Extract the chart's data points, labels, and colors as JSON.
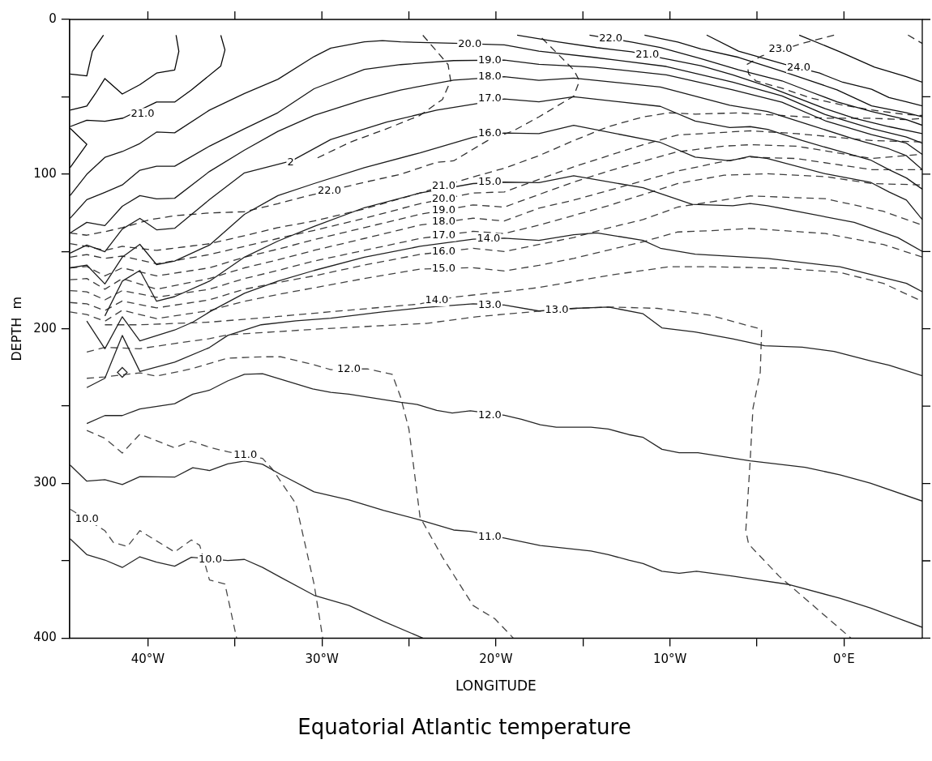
{
  "chart_data": {
    "type": "line",
    "title": "Equatorial Atlantic temperature",
    "xlabel": "LONGITUDE",
    "ylabel": "DEPTH  m",
    "xlim": [
      -44.5,
      4.5
    ],
    "ylim": [
      400,
      0
    ],
    "xticks": [
      {
        "value": -40,
        "label": "40°W"
      },
      {
        "value": -35,
        "label": null
      },
      {
        "value": -30,
        "label": "30°W"
      },
      {
        "value": -25,
        "label": null
      },
      {
        "value": -20,
        "label": "20°W"
      },
      {
        "value": -15,
        "label": null
      },
      {
        "value": -10,
        "label": "10°W"
      },
      {
        "value": -5,
        "label": null
      },
      {
        "value": 0,
        "label": "0°E"
      }
    ],
    "yticks": [
      0,
      {
        "value": 50,
        "label": null
      },
      100,
      {
        "value": 150,
        "label": null
      },
      200,
      {
        "value": 250,
        "label": null
      },
      300,
      {
        "value": 350,
        "label": null
      },
      400
    ],
    "grid": false,
    "series": [
      {
        "color": "#020202",
        "line_style": "solid",
        "x": [
          -44.47,
          -43.51,
          -43.19,
          -42.55
        ],
        "values": [
          35.3,
          36.5,
          20.6,
          10.2
        ]
      },
      {
        "color": "#040404",
        "line_style": "solid",
        "x": [
          -44.47,
          -43.51,
          -43.03,
          -42.47,
          -41.47,
          -40.46,
          -39.5,
          -38.46,
          -38.22,
          -38.38
        ],
        "values": [
          58.6,
          56.0,
          48.2,
          38.2,
          48.2,
          42.2,
          34.7,
          32.7,
          20.6,
          10.2
        ]
      },
      {
        "color": "#060606",
        "line_style": "solid",
        "x": [
          -44.47,
          -43.51,
          -42.47,
          -41.43,
          -39.5,
          -38.46,
          -37.5,
          -35.81,
          -35.57,
          -35.81
        ],
        "values": [
          69.3,
          65.2,
          65.8,
          63.8,
          53.4,
          53.4,
          45.6,
          30.1,
          19.7,
          10.2
        ]
      },
      {
        "color": "#080808",
        "line_style": "solid",
        "x": [
          -44.47,
          -43.51,
          -44.47
        ],
        "values": [
          70.3,
          80.7,
          95.8
        ]
      },
      {
        "color": "#0a0a0a",
        "line_style": "solid",
        "x": [
          -2.57,
          -0.24,
          1.76,
          3.59,
          4.5
        ],
        "values": [
          10.1,
          20.9,
          30.8,
          37.0,
          40.6
        ]
      },
      {
        "color": "#0c0c0c",
        "line_style": "solid",
        "x": [
          -7.89,
          -6.06,
          -3.4,
          -1.4,
          -0.07,
          1.59,
          2.59,
          3.59,
          4.5
        ],
        "values": [
          10.1,
          20.5,
          29.0,
          34.7,
          40.6,
          45.1,
          50.5,
          53.2,
          55.9
        ]
      },
      {
        "color": "#0e0e0e",
        "line_style": "solid",
        "x": [
          -11.46,
          -9.55,
          -8.22,
          -6.06,
          -3.56,
          -1.9,
          -0.4,
          1.59,
          3.59,
          4.5
        ],
        "values": [
          10.1,
          14.6,
          19.1,
          24.5,
          33.5,
          39.7,
          45.5,
          55.9,
          60.3,
          63.0
        ]
      },
      {
        "color": "#101010",
        "line_style": "solid",
        "x": [
          -14.62,
          -12.21,
          -10.55,
          -8.22,
          -6.06,
          -3.56,
          -1.9,
          -0.4,
          1.59,
          3.59,
          4.5
        ],
        "values": [
          10.1,
          14.6,
          18.2,
          25.4,
          32.6,
          39.7,
          46.9,
          53.2,
          59.5,
          64.8,
          68.4
        ]
      },
      {
        "color": "#121212",
        "line_style": "solid",
        "x": [
          -18.78,
          -16.53,
          -14.2,
          -12.21,
          -10.46,
          -8.22,
          -6.39,
          -4.39,
          -2.73,
          -1.07,
          0.59,
          2.59,
          4.5
        ],
        "values": [
          10.1,
          14.3,
          18.2,
          20.9,
          25.0,
          29.9,
          35.8,
          43.3,
          50.5,
          57.7,
          63.9,
          69.3,
          73.8
        ]
      },
      {
        "color": "#141414",
        "line_style": "solid",
        "x": [
          -44.47,
          -43.51,
          -42.47,
          -41.47,
          -40.46,
          -39.5,
          -38.46,
          -36.46,
          -34.45,
          -32.53,
          -30.45,
          -29.49,
          -27.56,
          -26.52,
          -25.48,
          -22.43,
          -19.52,
          -17.53,
          -14.37,
          -10.21,
          -6.39,
          -3.56,
          -1.07,
          1.59,
          3.59,
          4.5
        ],
        "values": [
          113.9,
          100.1,
          89.2,
          85.4,
          80.2,
          72.8,
          73.3,
          58.6,
          47.9,
          38.7,
          24.0,
          18.5,
          14.5,
          13.7,
          14.5,
          15.4,
          16.4,
          20.5,
          24.5,
          30.4,
          40.5,
          49.5,
          61.5,
          70.5,
          76.0,
          80.0
        ]
      },
      {
        "color": "#161616",
        "line_style": "solid",
        "x": [
          -44.47,
          -43.51,
          -42.47,
          -41.47,
          -40.46,
          -39.5,
          -38.46,
          -36.46,
          -34.45,
          -32.53,
          -30.45,
          -27.56,
          -25.48,
          -22.43,
          -19.52,
          -17.53,
          -14.37,
          -10.21,
          -6.39,
          -3.56,
          -1.07,
          1.59,
          3.59,
          4.5
        ],
        "values": [
          128.6,
          116.5,
          111.8,
          107.0,
          97.5,
          94.9,
          94.9,
          81.9,
          70.7,
          60.3,
          44.8,
          32.3,
          29.2,
          26.6,
          26.3,
          29.0,
          30.8,
          35.8,
          45.5,
          53.5,
          65.5,
          74.5,
          80.0,
          87.2
        ]
      },
      {
        "color": "#181818",
        "line_style": "solid",
        "x": [
          -44.47,
          -43.51,
          -42.47,
          -41.47,
          -40.46,
          -39.5,
          -38.46,
          -36.46,
          -34.45,
          -32.53,
          -30.45,
          -27.56,
          -25.48,
          -22.43,
          -19.52,
          -17.53,
          -15.53,
          -10.55,
          -6.56,
          -4.39,
          -1.9,
          0.59,
          2.59,
          3.59,
          4.5
        ],
        "values": [
          138.1,
          131.2,
          133.3,
          120.8,
          113.9,
          116.0,
          115.6,
          98.3,
          84.5,
          72.4,
          62.0,
          51.7,
          45.6,
          39.2,
          37.0,
          39.4,
          37.9,
          43.7,
          55.5,
          59.5,
          68.4,
          77.4,
          83.7,
          88.1,
          97.1
        ]
      },
      {
        "color": "#1a1a1a",
        "line_style": "solid",
        "x": [
          -44.47,
          -43.51,
          -42.47,
          -41.47,
          -40.46,
          -39.5,
          -38.46,
          -36.46,
          -34.45,
          -31.73,
          -29.49,
          -26.28,
          -23.4,
          -21.31,
          -19.52,
          -17.53,
          -15.53,
          -10.55,
          -8.55,
          -6.56,
          -5.39,
          -4.39,
          -2.4,
          -0.74,
          1.51,
          2.59,
          3.59,
          4.5
        ],
        "values": [
          151.1,
          145.9,
          150.2,
          135.5,
          128.6,
          136.0,
          135.0,
          116.5,
          99.2,
          91.4,
          77.6,
          66.4,
          58.6,
          54.8,
          51.4,
          53.2,
          50.0,
          56.2,
          65.7,
          69.9,
          69.3,
          71.1,
          78.3,
          83.7,
          90.8,
          97.1,
          102.5,
          109.7
        ]
      },
      {
        "color": "#1c1c1c",
        "line_style": "solid",
        "x": [
          -44.47,
          -43.51,
          -42.47,
          -41.47,
          -40.46,
          -39.5,
          -38.46,
          -36.46,
          -34.45,
          -32.53,
          -30.45,
          -27.56,
          -24.36,
          -21.31,
          -19.52,
          -17.53,
          -15.53,
          -10.55,
          -8.55,
          -6.56,
          -5.39,
          -4.39,
          -1.07,
          1.51,
          2.59,
          3.59,
          4.5
        ],
        "values": [
          160.6,
          158.8,
          171.0,
          153.7,
          145.4,
          158.5,
          156.2,
          145.9,
          126.0,
          113.9,
          106.1,
          95.8,
          86.2,
          76.2,
          73.4,
          73.8,
          68.4,
          79.5,
          89.0,
          91.4,
          88.5,
          89.9,
          99.8,
          105.2,
          111.5,
          116.8,
          129.4
        ]
      },
      {
        "color": "#1e1e1e",
        "line_style": "solid",
        "x": [
          -42.47,
          -41.47,
          -40.46,
          -39.5,
          -38.46,
          -36.46,
          -34.45,
          -32.53,
          -30.45,
          -27.56,
          -24.36,
          -21.31,
          -19.52,
          -17.53,
          -15.53,
          -11.54,
          -8.72,
          -6.39,
          -5.39,
          -4.39,
          0.59,
          3.09,
          4.5
        ],
        "values": [
          191.7,
          169.2,
          162.3,
          182.2,
          179.2,
          169.2,
          153.7,
          143.3,
          133.8,
          121.7,
          112.2,
          106.1,
          105.2,
          105.5,
          101.1,
          108.8,
          119.5,
          120.4,
          119.0,
          120.4,
          131.2,
          141.0,
          150.0
        ]
      },
      {
        "color": "#202020",
        "line_style": "solid",
        "x": [
          -43.51,
          -42.47,
          -41.47,
          -40.46,
          -38.46,
          -37.42,
          -36.46,
          -34.45,
          -32.53,
          -30.45,
          -27.56,
          -24.36,
          -21.31,
          -19.52,
          -17.53,
          -15.53,
          -14.2,
          -11.54,
          -10.55,
          -8.55,
          -4.39,
          -0.24,
          3.59,
          4.5
        ],
        "values": [
          195.0,
          212.9,
          192.2,
          207.8,
          200.8,
          195.7,
          189.1,
          177.0,
          169.2,
          162.3,
          153.7,
          146.7,
          142.1,
          141.4,
          142.8,
          139.2,
          138.0,
          142.8,
          147.9,
          151.8,
          154.5,
          159.9,
          170.6,
          176.0
        ]
      },
      {
        "color": "#222222",
        "line_style": "solid",
        "x": [
          -43.51,
          -42.47,
          -41.47,
          -40.46,
          -38.46,
          -36.46,
          -35.41,
          -33.49,
          -31.49,
          -29.49,
          -26.52,
          -24.36,
          -21.31,
          -19.52,
          -17.53,
          -15.53,
          -13.54,
          -11.54,
          -10.46,
          -8.55,
          -6.39,
          -4.56,
          -2.4,
          -0.57,
          1.59,
          2.59,
          4.5
        ],
        "values": [
          238.0,
          232.0,
          204.3,
          227.6,
          221.6,
          212.1,
          204.3,
          197.4,
          194.8,
          193.1,
          189.1,
          186.5,
          183.9,
          184.6,
          188.5,
          186.8,
          185.9,
          190.3,
          199.4,
          202.1,
          206.5,
          211.0,
          211.9,
          214.6,
          220.9,
          223.6,
          230.4
        ]
      },
      {
        "color": "#242424",
        "line_style": "solid",
        "x": [
          -43.51,
          -42.47,
          -41.47,
          -40.46,
          -38.46,
          -37.42,
          -36.46,
          -35.41,
          -34.45,
          -33.41,
          -30.53,
          -29.49,
          -28.44,
          -25.48,
          -24.52,
          -23.4,
          -22.51,
          -21.47,
          -19.52,
          -18.53,
          -17.45,
          -16.53,
          -14.54,
          -13.54,
          -12.37,
          -11.54,
          -10.46,
          -9.47,
          -8.39,
          -5.39,
          -2.23,
          -0.24,
          1.51,
          4.5
        ],
        "values": [
          261.3,
          256.1,
          256.1,
          251.8,
          248.4,
          242.3,
          239.7,
          233.7,
          229.4,
          229.0,
          238.9,
          241.1,
          242.3,
          247.5,
          248.9,
          252.7,
          254.4,
          253.0,
          255.9,
          258.5,
          262.1,
          263.6,
          263.6,
          264.8,
          268.4,
          270.2,
          277.9,
          280.1,
          280.1,
          285.4,
          289.6,
          294.4,
          299.8,
          311.4
        ]
      },
      {
        "color": "#262626",
        "line_style": "solid",
        "x": [
          -44.47,
          -43.51,
          -42.47,
          -41.47,
          -40.46,
          -38.46,
          -37.42,
          -36.46,
          -35.41,
          -34.45,
          -33.41,
          -32.37,
          -30.45,
          -28.44,
          -26.44,
          -24.36,
          -22.43,
          -21.47,
          -19.52,
          -17.45,
          -14.54,
          -13.54,
          -12.37,
          -11.54,
          -10.46,
          -9.47,
          -8.47,
          -6.39,
          -5.39,
          -3.23,
          -0.24,
          1.51,
          4.5
        ],
        "values": [
          288.1,
          298.5,
          297.6,
          300.7,
          295.6,
          295.9,
          289.8,
          291.6,
          287.3,
          285.5,
          287.6,
          294.2,
          305.4,
          310.6,
          317.5,
          323.6,
          330.1,
          331.0,
          335.3,
          340.1,
          343.7,
          346.0,
          349.6,
          351.8,
          356.8,
          358.1,
          356.8,
          359.9,
          361.6,
          365.2,
          374.2,
          380.5,
          393.0
        ]
      },
      {
        "color": "#282828",
        "line_style": "solid",
        "x": [
          -44.47,
          -43.51,
          -42.47,
          -41.47,
          -40.46,
          -39.5,
          -38.46,
          -37.5,
          -35.41,
          -34.45,
          -33.41,
          -32.37,
          -30.45,
          -28.44,
          -26.44,
          -24.2
        ],
        "values": [
          335.7,
          346.0,
          349.5,
          354.3,
          347.4,
          350.9,
          353.5,
          347.7,
          349.8,
          349.1,
          354.3,
          360.7,
          372.3,
          378.9,
          389.2,
          400
        ]
      },
      {
        "type": "scatter",
        "marker": "diamond",
        "color": "#2a2a2a",
        "x": [
          -41.47
        ],
        "values": [
          228.2
        ]
      },
      {
        "color": "#2c2c2c",
        "line_style": "dashed",
        "x": [
          -24.2,
          -23.4,
          -22.75,
          -22.6,
          -23.07,
          -24.36,
          -26.28,
          -28.36,
          -30.29
        ],
        "values": [
          10.2,
          20.6,
          29.2,
          39.6,
          51.7,
          62.0,
          70.7,
          79.3,
          89.7
        ]
      },
      {
        "color": "#2e2e2e",
        "line_style": "dashed",
        "x": [
          3.68,
          4.5
        ],
        "values": [
          10.1,
          15.5
        ]
      },
      {
        "color": "#303030",
        "line_style": "dashed",
        "x": [
          -0.57,
          -2.4,
          -4.73,
          -5.56,
          -5.48,
          -5.06,
          -3.56,
          -1.9,
          -0.24,
          1.59,
          3.59,
          4.5
        ],
        "values": [
          10.1,
          15.5,
          23.6,
          29.0,
          35.2,
          39.7,
          44.5,
          50.8,
          55.0,
          58.5,
          61.5,
          62.1
        ]
      },
      {
        "color": "#323232",
        "line_style": "dashed",
        "x": [
          -44.47,
          -43.51,
          -42.47,
          -41.47,
          -39.9,
          -38.46,
          -36.46,
          -34.45,
          -32.53,
          -31.09,
          -27.56,
          -25.48,
          -23.4,
          -22.43,
          -20.51,
          -19.0,
          -17.53,
          -15.53,
          -15.2,
          -15.53,
          -17.45
        ],
        "values": [
          138.1,
          139.5,
          137.2,
          134.6,
          129.5,
          126.9,
          125.1,
          124.3,
          119.1,
          114.8,
          105.3,
          100.1,
          92.3,
          91.4,
          78.5,
          72.0,
          63.0,
          49.6,
          39.7,
          32.6,
          11.0
        ]
      },
      {
        "color": "#343434",
        "line_style": "dashed",
        "x": [
          -44.47,
          -43.51,
          -42.47,
          -41.47,
          -39.5,
          -36.46,
          -34.45,
          -32.53,
          -30.45,
          -27.56,
          -24.36,
          -21.31,
          -19.52,
          -17.53,
          -15.53,
          -13.54,
          -11.54,
          -10.05,
          -8.55,
          -6.06,
          -3.56,
          -1.07,
          1.59,
          3.59,
          4.5
        ],
        "values": [
          145.0,
          146.7,
          149.3,
          146.7,
          149.3,
          145.0,
          139.8,
          134.6,
          130.3,
          122.5,
          112.2,
          101.8,
          96.2,
          88.1,
          78.3,
          69.3,
          63.0,
          60.4,
          61.2,
          60.4,
          62.1,
          63.9,
          63.9,
          64.8,
          63.9
        ]
      },
      {
        "color": "#363636",
        "line_style": "dashed",
        "x": [
          -44.47,
          -43.51,
          -42.47,
          -41.47,
          -39.5,
          -36.46,
          -34.45,
          -32.53,
          -30.45,
          -27.56,
          -24.36,
          -21.31,
          -19.52,
          -17.53,
          -15.53,
          -13.54,
          -11.54,
          -9.55,
          -5.39,
          -2.73,
          1.59,
          4.5
        ],
        "values": [
          153.7,
          152.0,
          154.5,
          153.0,
          158.0,
          152.0,
          146.7,
          141.6,
          136.4,
          128.6,
          119.1,
          112.2,
          111.5,
          103.4,
          95.3,
          88.1,
          81.0,
          74.7,
          72.0,
          73.8,
          78.3,
          79.2
        ]
      },
      {
        "color": "#383838",
        "line_style": "dashed",
        "x": [
          -44.47,
          -43.51,
          -42.47,
          -41.47,
          -39.5,
          -36.46,
          -34.45,
          -32.53,
          -30.45,
          -27.56,
          -24.36,
          -21.31,
          -19.52,
          -17.53,
          -15.53,
          -13.54,
          -11.54,
          -9.55,
          -6.89,
          -5.39,
          -2.73,
          1.59,
          4.5
        ],
        "values": [
          160.6,
          159.7,
          165.8,
          160.6,
          165.8,
          160.6,
          153.7,
          148.5,
          142.4,
          134.6,
          126.0,
          119.9,
          121.3,
          113.2,
          105.2,
          98.0,
          91.7,
          85.5,
          81.9,
          81.0,
          81.9,
          89.9,
          87.2
        ]
      },
      {
        "color": "#3a3a3a",
        "line_style": "dashed",
        "x": [
          -44.47,
          -43.51,
          -42.47,
          -41.47,
          -39.5,
          -36.46,
          -34.45,
          -32.53,
          -30.45,
          -27.56,
          -24.36,
          -21.31,
          -19.52,
          -17.53,
          -15.53,
          -13.54,
          -11.54,
          -9.55,
          -6.89,
          -5.39,
          -2.73,
          1.59,
          4.5
        ],
        "values": [
          168.3,
          167.5,
          174.4,
          167.5,
          174.4,
          167.5,
          160.6,
          155.4,
          149.3,
          141.6,
          132.9,
          128.5,
          130.3,
          122.0,
          116.8,
          110.6,
          104.3,
          98.0,
          91.7,
          89.0,
          89.9,
          97.1,
          97.1
        ]
      },
      {
        "color": "#3c3c3c",
        "line_style": "dashed",
        "x": [
          -44.47,
          -43.51,
          -42.47,
          -41.47,
          -39.5,
          -36.46,
          -34.45,
          -32.53,
          -30.45,
          -27.56,
          -24.36,
          -21.31,
          -19.52,
          -17.53,
          -15.53,
          -13.54,
          -11.54,
          -9.55,
          -6.89,
          -4.39,
          -1.07,
          1.59,
          4.5
        ],
        "values": [
          175.3,
          176.1,
          181.3,
          175.3,
          179.6,
          174.4,
          167.5,
          162.3,
          156.2,
          149.3,
          141.6,
          137.0,
          138.4,
          133.0,
          126.7,
          120.4,
          113.2,
          106.1,
          100.7,
          99.8,
          101.6,
          106.1,
          107.0
        ]
      },
      {
        "color": "#3e3e3e",
        "line_style": "dashed",
        "x": [
          -44.47,
          -43.51,
          -42.47,
          -41.47,
          -39.5,
          -36.46,
          -34.45,
          -32.53,
          -30.45,
          -27.56,
          -24.36,
          -21.31,
          -19.52,
          -17.53,
          -15.53,
          -13.54,
          -11.54,
          -9.55,
          -8.55,
          -5.39,
          -1.07,
          2.26,
          4.5
        ],
        "values": [
          183.0,
          183.9,
          188.2,
          182.0,
          186.5,
          181.3,
          174.4,
          170.1,
          165.8,
          158.8,
          151.9,
          148.0,
          150.0,
          145.5,
          141.0,
          134.8,
          129.4,
          121.3,
          119.5,
          114.1,
          115.9,
          124.0,
          133.0
        ]
      },
      {
        "color": "#404040",
        "line_style": "dashed",
        "x": [
          -44.47,
          -43.51,
          -42.47,
          -41.47,
          -39.5,
          -36.46,
          -34.45,
          -32.53,
          -30.45,
          -27.56,
          -24.36,
          -21.31,
          -19.52,
          -17.53,
          -15.53,
          -13.54,
          -11.54,
          -9.55,
          -7.72,
          -5.39,
          -1.07,
          2.26,
          4.5
        ],
        "values": [
          189.1,
          190.8,
          195.1,
          188.0,
          193.4,
          188.2,
          182.2,
          177.8,
          173.5,
          167.5,
          161.4,
          160.5,
          162.6,
          159.0,
          154.5,
          149.1,
          143.7,
          137.4,
          136.6,
          135.1,
          138.4,
          145.5,
          153.6
        ]
      },
      {
        "color": "#424242",
        "line_style": "dashed",
        "x": [
          -42.47,
          -40.46,
          -36.46,
          -32.5,
          -28.5,
          -24.4,
          -22.4,
          -19.52,
          -17.53,
          -13.37,
          -10.05,
          -7.72,
          -3.56,
          -0.24,
          2.26,
          4.5
        ],
        "values": [
          197.4,
          197.4,
          195.7,
          192.0,
          188.0,
          184.0,
          179.5,
          176.0,
          173.3,
          165.2,
          159.9,
          159.9,
          160.8,
          163.5,
          170.6,
          182.3
        ]
      },
      {
        "color": "#444444",
        "line_style": "dashed",
        "x": [
          -43.51,
          -42.47,
          -40.46,
          -38.46,
          -36.46,
          -35.41,
          -30.0,
          -24.0,
          -21.02,
          -17.53,
          -15.37,
          -13.37,
          -10.71,
          -7.72,
          -4.73,
          -4.81,
          -5.23,
          -5.39,
          -5.64,
          -5.48,
          -3.73,
          0.4
        ],
        "values": [
          215.0,
          212.0,
          212.9,
          209.5,
          206.4,
          203.9,
          200.0,
          196.5,
          192.1,
          188.6,
          186.8,
          185.9,
          186.8,
          191.2,
          200.3,
          228.1,
          251.4,
          285.4,
          330.3,
          339.2,
          359.9,
          400
        ]
      },
      {
        "color": "#464646",
        "line_style": "dashed",
        "x": [
          -43.51,
          -42.47,
          -40.46,
          -39.5,
          -37.5,
          -35.41,
          -33.41,
          -32.37,
          -30.45,
          -29.49,
          -27.4,
          -25.96,
          -25.48,
          -25.0,
          -24.36,
          -23.07,
          -21.31,
          -20.06,
          -19.0
        ],
        "values": [
          232.0,
          231.1,
          228.5,
          230.6,
          225.9,
          219.0,
          218.1,
          218.1,
          223.3,
          226.4,
          225.9,
          229.4,
          244.0,
          264.8,
          321.8,
          347.7,
          378.9,
          387.5,
          400
        ]
      },
      {
        "color": "#484848",
        "line_style": "dashed",
        "x": [
          -43.51,
          -42.47,
          -41.47,
          -40.46,
          -38.46,
          -37.5,
          -36.38,
          -35.41,
          -33.41,
          -32.85,
          -31.49,
          -30.45,
          -29.95
        ],
        "values": [
          265.7,
          270.8,
          280.3,
          268.2,
          276.9,
          272.6,
          276.9,
          279.5,
          283.8,
          290.7,
          313.2,
          365.0,
          400
        ]
      },
      {
        "color": "#4a4a4a",
        "line_style": "dashed",
        "x": [
          -44.47,
          -42.47,
          -41.98,
          -41.18,
          -40.46,
          -38.46,
          -37.5,
          -37.02,
          -36.46,
          -35.57,
          -34.9
        ],
        "values": [
          316.6,
          330.5,
          338.2,
          340.8,
          330.5,
          344.3,
          336.5,
          340.0,
          362.4,
          365.0,
          400
        ]
      }
    ],
    "annotations": [
      {
        "text": "21.0",
        "x": -40.3,
        "y": 61
      },
      {
        "text": "20.0",
        "x": -21.5,
        "y": 16.0
      },
      {
        "text": "19.0",
        "x": -20.35,
        "y": 26.3
      },
      {
        "text": "18.0",
        "x": -20.35,
        "y": 37.0
      },
      {
        "text": "17.0",
        "x": -20.35,
        "y": 51.4
      },
      {
        "text": "16.0",
        "x": -20.35,
        "y": 73.8
      },
      {
        "text": "15.0",
        "x": -20.35,
        "y": 105.2
      },
      {
        "text": "14.0",
        "x": -20.42,
        "y": 141.8
      },
      {
        "text": "13.0",
        "x": -20.35,
        "y": 184.6
      },
      {
        "text": "12.0",
        "x": -20.35,
        "y": 255.9
      },
      {
        "text": "11.0",
        "x": -20.35,
        "y": 334.8
      },
      {
        "text": "10.0",
        "x": -36.41,
        "y": 349.5
      },
      {
        "text": "22.0",
        "x": -13.4,
        "y": 12.4
      },
      {
        "text": "21.0",
        "x": -11.3,
        "y": 23.0
      },
      {
        "text": "24.0",
        "x": -2.6,
        "y": 31.0
      },
      {
        "text": "23.0",
        "x": -3.65,
        "y": 19.1
      },
      {
        "text": "2",
        "x": -31.8,
        "y": 92.3
      },
      {
        "text": "22.0",
        "x": -29.57,
        "y": 110.8
      },
      {
        "text": "21.0",
        "x": -23.0,
        "y": 107.6
      },
      {
        "text": "20.0",
        "x": -23.0,
        "y": 116.1
      },
      {
        "text": "19.0",
        "x": -23.0,
        "y": 123.3
      },
      {
        "text": "18.0",
        "x": -23.0,
        "y": 131.0
      },
      {
        "text": "17.0",
        "x": -23.0,
        "y": 139.6
      },
      {
        "text": "16.0",
        "x": -23.0,
        "y": 150.2
      },
      {
        "text": "15.0",
        "x": -23.0,
        "y": 161.0
      },
      {
        "text": "14.0",
        "x": -23.4,
        "y": 181.8
      },
      {
        "text": "13.0",
        "x": -16.5,
        "y": 187.7
      },
      {
        "text": "12.0",
        "x": -28.45,
        "y": 226.15
      },
      {
        "text": "11.0",
        "x": -34.4,
        "y": 281.7
      },
      {
        "text": "10.0",
        "x": -43.5,
        "y": 323.3
      }
    ]
  }
}
